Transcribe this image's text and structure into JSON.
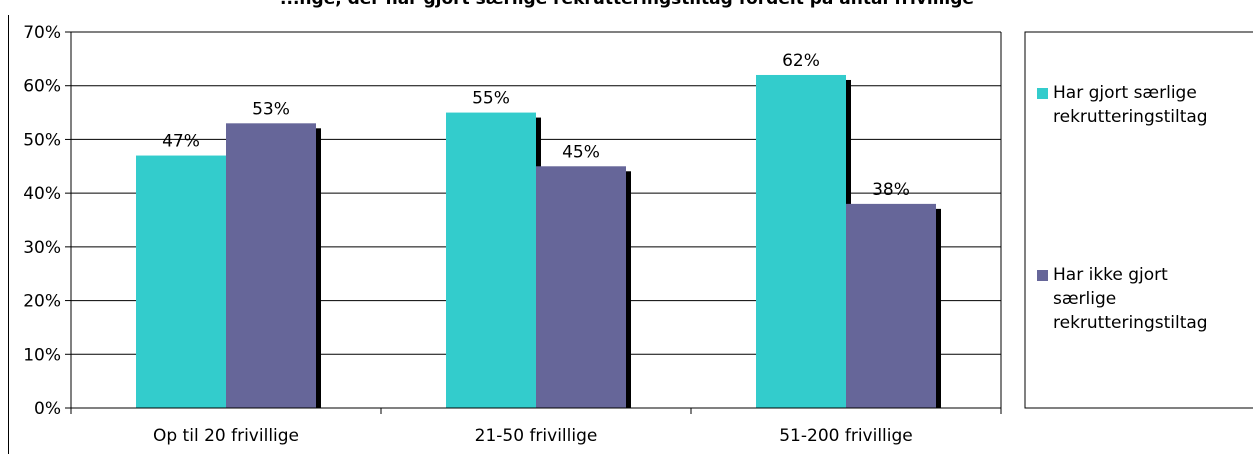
{
  "chart_data": {
    "type": "bar",
    "title": "...nge, der har gjort særlige rekrutteringstiltag fordelt på antal frivillige",
    "categories": [
      "Op til 20 frivillige",
      "21-50 frivillige",
      "51-200 frivillige"
    ],
    "series": [
      {
        "name": "Har gjort særlige rekrutteringstiltag",
        "values": [
          47,
          55,
          62
        ],
        "labels": [
          "47%",
          "55%",
          "62%"
        ],
        "color": "#33CCCC"
      },
      {
        "name": "Har ikke gjort særlige rekrutteringstiltag",
        "values": [
          53,
          45,
          38
        ],
        "labels": [
          "53%",
          "45%",
          "38%"
        ],
        "color": "#666699"
      }
    ],
    "ylim": [
      0,
      70
    ],
    "yticks": [
      "0%",
      "10%",
      "20%",
      "30%",
      "40%",
      "50%",
      "60%",
      "70%"
    ],
    "grid": true,
    "legend_position": "right",
    "legend": [
      {
        "lines": [
          "Har gjort særlige",
          "rekrutteringstiltag"
        ]
      },
      {
        "lines": [
          "Har ikke gjort",
          "særlige",
          "rekrutteringstiltag"
        ]
      }
    ]
  }
}
